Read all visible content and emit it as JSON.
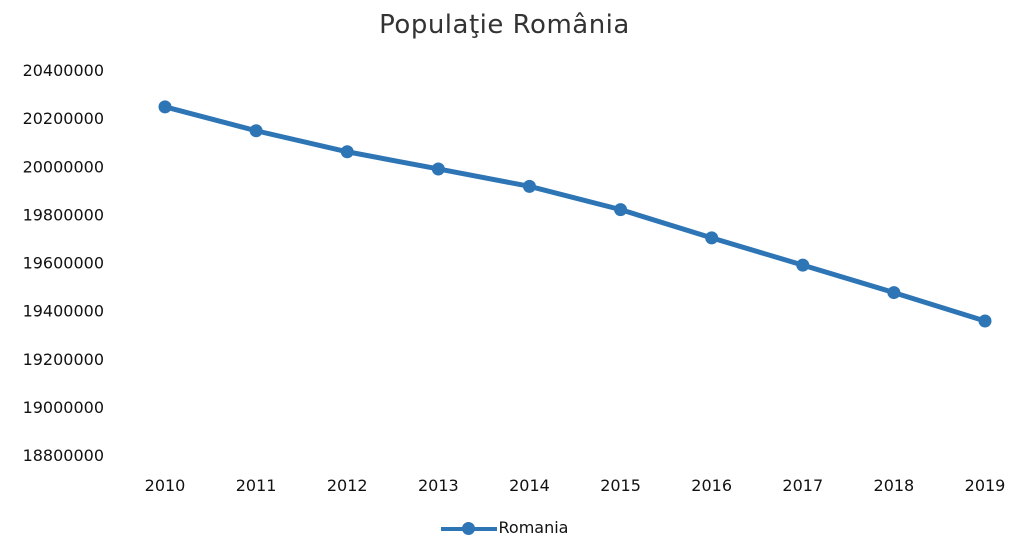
{
  "chart_data": {
    "type": "line",
    "title": "Populaţie România",
    "xlabel": "",
    "ylabel": "",
    "categories": [
      "2010",
      "2011",
      "2012",
      "2013",
      "2014",
      "2015",
      "2016",
      "2017",
      "2018",
      "2019"
    ],
    "series": [
      {
        "name": "Romania",
        "color": "#2e75b6",
        "values": [
          20246871,
          20147528,
          20060182,
          19988694,
          19916451,
          19819697,
          19702332,
          19589012,
          19474952,
          19357000
        ]
      }
    ],
    "ylim": [
      18800000,
      20400000
    ],
    "yticks": [
      "20400000",
      "20200000",
      "20000000",
      "19800000",
      "19600000",
      "19400000",
      "19200000",
      "19000000",
      "18800000"
    ],
    "grid": false,
    "legend_position": "bottom",
    "markers": true
  }
}
